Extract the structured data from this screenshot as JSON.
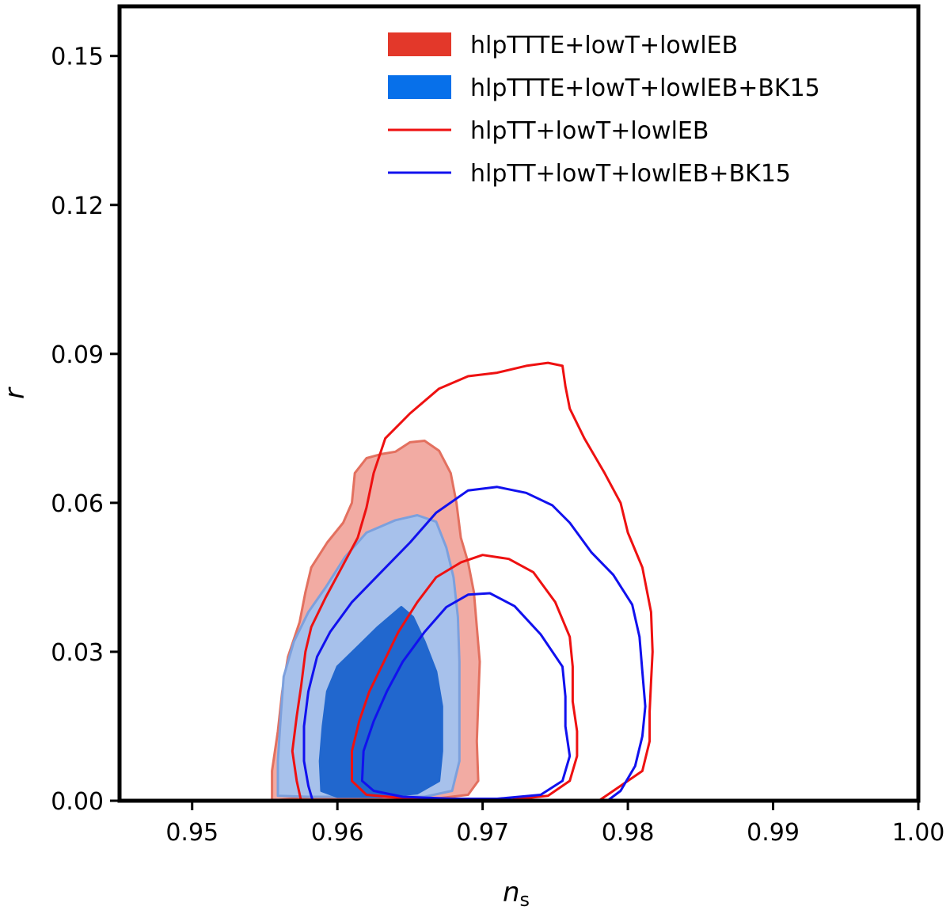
{
  "chart_data": {
    "type": "contour",
    "title": "",
    "xlabel": "n",
    "xlabel_sub": "s",
    "ylabel": "r",
    "xlim": [
      0.945,
      1.0
    ],
    "ylim": [
      0.0,
      0.16
    ],
    "xticks": [
      0.95,
      0.96,
      0.97,
      0.98,
      0.99,
      1.0
    ],
    "xtick_labels": [
      "0.95",
      "0.96",
      "0.97",
      "0.98",
      "0.99",
      "1.00"
    ],
    "yticks": [
      0.0,
      0.03,
      0.06,
      0.09,
      0.12,
      0.15
    ],
    "ytick_labels": [
      "0.00",
      "0.03",
      "0.06",
      "0.09",
      "0.12",
      "0.15"
    ],
    "grid": false,
    "legend_position": "top-right",
    "legend": [
      {
        "label": "hlpTTTE+lowT+lowlEB",
        "style": "filled",
        "color": "#e3382a"
      },
      {
        "label": "hlpTTTE+lowT+lowlEB+BK15",
        "style": "filled",
        "color": "#0770ea"
      },
      {
        "label": "hlpTT+lowT+lowlEB",
        "style": "line",
        "color": "#ee1111"
      },
      {
        "label": "hlpTT+lowT+lowlEB+BK15",
        "style": "line",
        "color": "#1111ee"
      }
    ],
    "series": [
      {
        "name": "hlpTTTE+lowT+lowlEB",
        "style": "filled",
        "contours": [
          {
            "level": "95%",
            "color": "#f2aba3",
            "edge": "#e3705f",
            "points": [
              [
                0.9555,
                0.0
              ],
              [
                0.9555,
                0.006
              ],
              [
                0.9559,
                0.014
              ],
              [
                0.9562,
                0.022
              ],
              [
                0.9566,
                0.029
              ],
              [
                0.9574,
                0.036
              ],
              [
                0.9578,
                0.042
              ],
              [
                0.9582,
                0.047
              ],
              [
                0.9593,
                0.052
              ],
              [
                0.9604,
                0.056
              ],
              [
                0.961,
                0.06
              ],
              [
                0.9612,
                0.066
              ],
              [
                0.962,
                0.069
              ],
              [
                0.963,
                0.0698
              ],
              [
                0.964,
                0.0703
              ],
              [
                0.965,
                0.0722
              ],
              [
                0.966,
                0.0725
              ],
              [
                0.967,
                0.0705
              ],
              [
                0.9678,
                0.066
              ],
              [
                0.9682,
                0.06
              ],
              [
                0.9685,
                0.053
              ],
              [
                0.969,
                0.048
              ],
              [
                0.9694,
                0.042
              ],
              [
                0.9696,
                0.035
              ],
              [
                0.9698,
                0.028
              ],
              [
                0.9697,
                0.02
              ],
              [
                0.9696,
                0.012
              ],
              [
                0.9697,
                0.004
              ],
              [
                0.969,
                0.0012
              ],
              [
                0.967,
                0.0005
              ],
              [
                0.96,
                0.0005
              ],
              [
                0.957,
                0.0005
              ]
            ]
          },
          {
            "level": "68%",
            "color": "#d59ba7",
            "edge": "#d59ba7",
            "points": [
              [
                0.962,
                0.005
              ],
              [
                0.9618,
                0.015
              ],
              [
                0.962,
                0.025
              ],
              [
                0.9626,
                0.033
              ],
              [
                0.9634,
                0.039
              ],
              [
                0.964,
                0.044
              ],
              [
                0.965,
                0.046
              ],
              [
                0.9654,
                0.043
              ],
              [
                0.9655,
                0.036
              ],
              [
                0.966,
                0.031
              ],
              [
                0.9665,
                0.027
              ],
              [
                0.9668,
                0.02
              ],
              [
                0.9666,
                0.012
              ],
              [
                0.9662,
                0.006
              ],
              [
                0.965,
                0.003
              ],
              [
                0.963,
                0.002
              ]
            ]
          }
        ]
      },
      {
        "name": "hlpTTTE+lowT+lowlEB+BK15",
        "style": "filled",
        "contours": [
          {
            "level": "95%",
            "color": "#a7c1eb",
            "edge": "#7ca0dd",
            "points": [
              [
                0.9559,
                0.001
              ],
              [
                0.9559,
                0.008
              ],
              [
                0.9561,
                0.017
              ],
              [
                0.9563,
                0.025
              ],
              [
                0.957,
                0.032
              ],
              [
                0.958,
                0.038
              ],
              [
                0.9592,
                0.043
              ],
              [
                0.9605,
                0.049
              ],
              [
                0.962,
                0.054
              ],
              [
                0.964,
                0.0565
              ],
              [
                0.9655,
                0.0575
              ],
              [
                0.9668,
                0.0562
              ],
              [
                0.9675,
                0.051
              ],
              [
                0.968,
                0.045
              ],
              [
                0.9683,
                0.037
              ],
              [
                0.9684,
                0.028
              ],
              [
                0.9684,
                0.018
              ],
              [
                0.9684,
                0.008
              ],
              [
                0.9679,
                0.002
              ],
              [
                0.966,
                0.0008
              ],
              [
                0.962,
                0.0008
              ],
              [
                0.958,
                0.0008
              ]
            ]
          },
          {
            "level": "68%",
            "color": "#2167ce",
            "edge": "#2167ce",
            "points": [
              [
                0.9589,
                0.002
              ],
              [
                0.9588,
                0.008
              ],
              [
                0.959,
                0.015
              ],
              [
                0.9593,
                0.022
              ],
              [
                0.96,
                0.027
              ],
              [
                0.9614,
                0.031
              ],
              [
                0.9628,
                0.035
              ],
              [
                0.9644,
                0.039
              ],
              [
                0.9652,
                0.037
              ],
              [
                0.966,
                0.032
              ],
              [
                0.9668,
                0.026
              ],
              [
                0.9672,
                0.019
              ],
              [
                0.9672,
                0.01
              ],
              [
                0.967,
                0.004
              ],
              [
                0.9655,
                0.0015
              ],
              [
                0.963,
                0.0008
              ],
              [
                0.96,
                0.0008
              ]
            ]
          }
        ]
      },
      {
        "name": "hlpTT+lowT+lowlEB",
        "style": "line",
        "contours": [
          {
            "level": "95%",
            "color": "#ee1111",
            "closed": false,
            "points": [
              [
                0.9575,
                0.0
              ],
              [
                0.9572,
                0.004
              ],
              [
                0.9569,
                0.01
              ],
              [
                0.9572,
                0.017
              ],
              [
                0.9575,
                0.023
              ],
              [
                0.9578,
                0.03
              ],
              [
                0.9582,
                0.035
              ],
              [
                0.9592,
                0.041
              ],
              [
                0.9603,
                0.047
              ],
              [
                0.9614,
                0.053
              ],
              [
                0.962,
                0.059
              ],
              [
                0.9625,
                0.066
              ],
              [
                0.9633,
                0.073
              ],
              [
                0.965,
                0.078
              ],
              [
                0.967,
                0.083
              ],
              [
                0.969,
                0.0855
              ],
              [
                0.971,
                0.0862
              ],
              [
                0.973,
                0.0876
              ],
              [
                0.9745,
                0.0882
              ],
              [
                0.9755,
                0.0876
              ],
              [
                0.9757,
                0.0835
              ],
              [
                0.976,
                0.079
              ],
              [
                0.977,
                0.073
              ],
              [
                0.9784,
                0.066
              ],
              [
                0.9795,
                0.06
              ],
              [
                0.98,
                0.054
              ],
              [
                0.981,
                0.047
              ],
              [
                0.9816,
                0.038
              ],
              [
                0.9817,
                0.03
              ],
              [
                0.9816,
                0.024
              ],
              [
                0.9815,
                0.018
              ],
              [
                0.9815,
                0.012
              ],
              [
                0.981,
                0.006
              ],
              [
                0.979,
                0.002
              ],
              [
                0.978,
                0.0
              ]
            ]
          },
          {
            "level": "68%",
            "color": "#ee1111",
            "closed": true,
            "points": [
              [
                0.961,
                0.004
              ],
              [
                0.961,
                0.01
              ],
              [
                0.9615,
                0.016
              ],
              [
                0.9622,
                0.022
              ],
              [
                0.9632,
                0.028
              ],
              [
                0.9642,
                0.034
              ],
              [
                0.9655,
                0.04
              ],
              [
                0.9668,
                0.045
              ],
              [
                0.9685,
                0.048
              ],
              [
                0.97,
                0.0495
              ],
              [
                0.9718,
                0.0487
              ],
              [
                0.9735,
                0.046
              ],
              [
                0.975,
                0.04
              ],
              [
                0.976,
                0.033
              ],
              [
                0.9762,
                0.027
              ],
              [
                0.9762,
                0.02
              ],
              [
                0.9765,
                0.014
              ],
              [
                0.9765,
                0.009
              ],
              [
                0.976,
                0.004
              ],
              [
                0.9745,
                0.001
              ],
              [
                0.972,
                0.0002
              ],
              [
                0.969,
                0.0002
              ],
              [
                0.965,
                0.0004
              ],
              [
                0.962,
                0.0012
              ]
            ]
          }
        ]
      },
      {
        "name": "hlpTT+lowT+lowlEB+BK15",
        "style": "line",
        "contours": [
          {
            "level": "95%",
            "color": "#1111ee",
            "closed": false,
            "points": [
              [
                0.9583,
                0.0
              ],
              [
                0.958,
                0.003
              ],
              [
                0.9577,
                0.008
              ],
              [
                0.9577,
                0.015
              ],
              [
                0.958,
                0.022
              ],
              [
                0.9586,
                0.029
              ],
              [
                0.9595,
                0.034
              ],
              [
                0.961,
                0.04
              ],
              [
                0.963,
                0.046
              ],
              [
                0.965,
                0.052
              ],
              [
                0.9668,
                0.058
              ],
              [
                0.969,
                0.0625
              ],
              [
                0.971,
                0.0632
              ],
              [
                0.973,
                0.062
              ],
              [
                0.9748,
                0.0595
              ],
              [
                0.976,
                0.056
              ],
              [
                0.9775,
                0.05
              ],
              [
                0.979,
                0.0455
              ],
              [
                0.9803,
                0.0395
              ],
              [
                0.9808,
                0.033
              ],
              [
                0.981,
                0.026
              ],
              [
                0.9812,
                0.019
              ],
              [
                0.981,
                0.013
              ],
              [
                0.9805,
                0.007
              ],
              [
                0.9795,
                0.002
              ],
              [
                0.9786,
                0.0
              ]
            ]
          },
          {
            "level": "68%",
            "color": "#1111ee",
            "closed": true,
            "points": [
              [
                0.9617,
                0.004
              ],
              [
                0.9618,
                0.01
              ],
              [
                0.9625,
                0.016
              ],
              [
                0.9634,
                0.022
              ],
              [
                0.9645,
                0.028
              ],
              [
                0.966,
                0.034
              ],
              [
                0.9675,
                0.039
              ],
              [
                0.969,
                0.0415
              ],
              [
                0.9705,
                0.0418
              ],
              [
                0.9722,
                0.0392
              ],
              [
                0.974,
                0.0335
              ],
              [
                0.9755,
                0.027
              ],
              [
                0.9757,
                0.021
              ],
              [
                0.9757,
                0.015
              ],
              [
                0.976,
                0.009
              ],
              [
                0.9755,
                0.004
              ],
              [
                0.974,
                0.0012
              ],
              [
                0.971,
                0.0004
              ],
              [
                0.968,
                0.0004
              ],
              [
                0.9645,
                0.0008
              ],
              [
                0.9625,
                0.002
              ]
            ]
          }
        ]
      }
    ]
  }
}
